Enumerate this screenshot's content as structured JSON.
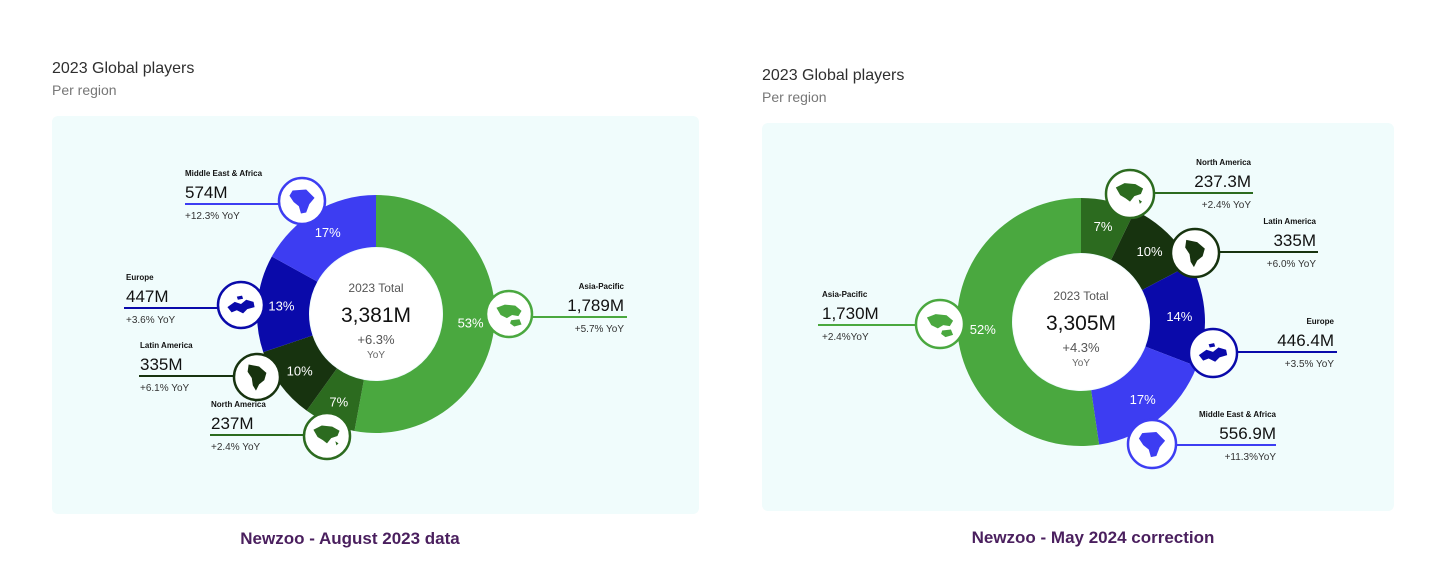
{
  "colors": {
    "asia_pacific": "#4aa83f",
    "middle_east_africa": "#3d3df2",
    "europe": "#0a0aaa",
    "latin_america": "#17330f",
    "north_america": "#2c6b1f",
    "caption": "#4a1f5e",
    "card_bg": "#f0fcfc"
  },
  "panels": [
    {
      "title": "2023 Global players",
      "subtitle": "Per region",
      "caption": "Newzoo - August 2023 data",
      "center": {
        "label": "2023 Total",
        "total": "3,381M",
        "growth": "+6.3%",
        "growth_unit": "YoY"
      },
      "regions": [
        {
          "name": "Asia-Pacific",
          "value": "1,789M",
          "yoy": "+5.7% YoY",
          "pct_label": "53%",
          "icon": "asia-pacific-map-icon"
        },
        {
          "name": "North America",
          "value": "237M",
          "yoy": "+2.4% YoY",
          "pct_label": "7%",
          "icon": "north-america-map-icon"
        },
        {
          "name": "Latin America",
          "value": "335M",
          "yoy": "+6.1% YoY",
          "pct_label": "10%",
          "icon": "latin-america-map-icon"
        },
        {
          "name": "Europe",
          "value": "447M",
          "yoy": "+3.6% YoY",
          "pct_label": "13%",
          "icon": "europe-map-icon"
        },
        {
          "name": "Middle East & Africa",
          "value": "574M",
          "yoy": "+12.3% YoY",
          "pct_label": "17%",
          "icon": "middle-east-africa-map-icon"
        }
      ]
    },
    {
      "title": "2023 Global players",
      "subtitle": "Per region",
      "caption": "Newzoo - May 2024 correction",
      "center": {
        "label": "2023 Total",
        "total": "3,305M",
        "growth": "+4.3%",
        "growth_unit": "YoY"
      },
      "regions": [
        {
          "name": "North America",
          "value": "237.3M",
          "yoy": "+2.4% YoY",
          "pct_label": "7%",
          "icon": "north-america-map-icon"
        },
        {
          "name": "Latin America",
          "value": "335M",
          "yoy": "+6.0% YoY",
          "pct_label": "10%",
          "icon": "latin-america-map-icon"
        },
        {
          "name": "Europe",
          "value": "446.4M",
          "yoy": "+3.5% YoY",
          "pct_label": "14%",
          "icon": "europe-map-icon"
        },
        {
          "name": "Middle East & Africa",
          "value": "556.9M",
          "yoy": "+11.3%YoY",
          "pct_label": "17%",
          "icon": "middle-east-africa-map-icon"
        },
        {
          "name": "Asia-Pacific",
          "value": "1,730M",
          "yoy": "+2.4%YoY",
          "pct_label": "52%",
          "icon": "asia-pacific-map-icon"
        }
      ]
    }
  ],
  "chart_data": [
    {
      "type": "pie",
      "title": "2023 Global players",
      "subtitle": "Per region",
      "unit": "M players",
      "categories": [
        "Asia-Pacific",
        "North America",
        "Latin America",
        "Europe",
        "Middle East & Africa"
      ],
      "values": [
        1789,
        237,
        335,
        447,
        574
      ],
      "percentages": [
        53,
        7,
        10,
        13,
        17
      ],
      "yoy_growth_pct": [
        5.7,
        2.4,
        6.1,
        3.6,
        12.3
      ],
      "total": 3381,
      "total_yoy_pct": 6.3
    },
    {
      "type": "pie",
      "title": "2023 Global players",
      "subtitle": "Per region",
      "unit": "M players",
      "categories": [
        "North America",
        "Latin America",
        "Europe",
        "Middle East & Africa",
        "Asia-Pacific"
      ],
      "values": [
        237.3,
        335,
        446.4,
        556.9,
        1730
      ],
      "percentages": [
        7,
        10,
        14,
        17,
        52
      ],
      "yoy_growth_pct": [
        2.4,
        6.0,
        3.5,
        11.3,
        2.4
      ],
      "total": 3305,
      "total_yoy_pct": 4.3
    }
  ]
}
